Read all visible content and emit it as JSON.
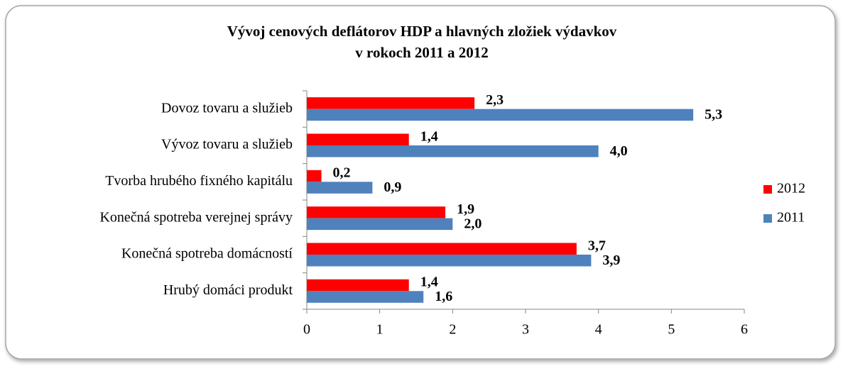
{
  "chart_data": {
    "type": "hbar",
    "title": [
      "Vývoj cenových deflátorov HDP a hlavných zložiek výdavkov",
      "v rokoch 2011 a 2012"
    ],
    "categories": [
      "Dovoz tovaru a služieb",
      "Vývoz tovaru a služieb",
      "Tvorba hrubého fixného kapitálu",
      "Konečná spotreba verejnej správy",
      "Konečná spotreba domácností",
      "Hrubý domáci produkt"
    ],
    "series": [
      {
        "name": "2012",
        "color": "#ff0000",
        "label_color": "#c00000",
        "values": [
          2.3,
          1.4,
          0.2,
          1.9,
          3.7,
          1.4
        ],
        "value_labels": [
          "2,3",
          "1,4",
          "0,2",
          "1,9",
          "3,7",
          "1,4"
        ]
      },
      {
        "name": "2011",
        "color": "#4f81bd",
        "label_color": "#1f6fb4",
        "values": [
          5.3,
          4.0,
          0.9,
          2.0,
          3.9,
          1.6
        ],
        "value_labels": [
          "5,3",
          "4,0",
          "0,9",
          "2,0",
          "3,9",
          "1,6"
        ]
      }
    ],
    "xlim": [
      0,
      6
    ],
    "xticks": [
      0,
      1,
      2,
      3,
      4,
      5,
      6
    ],
    "legend": "right"
  }
}
